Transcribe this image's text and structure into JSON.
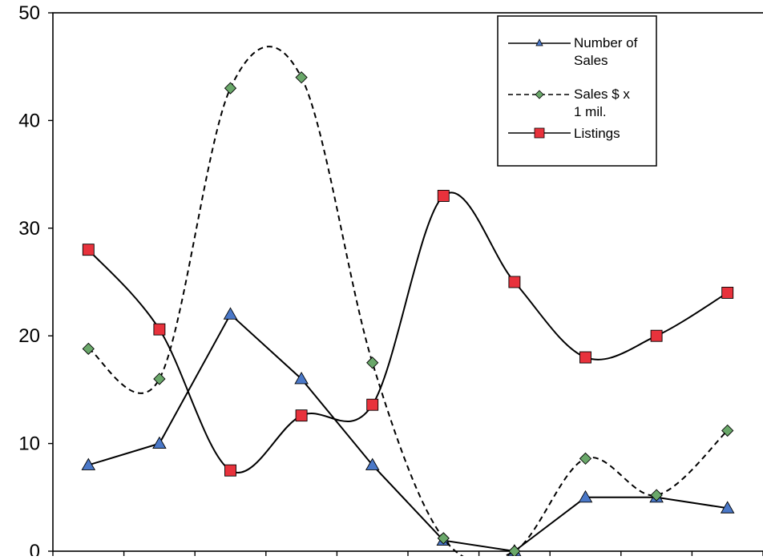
{
  "chart_data": {
    "type": "line",
    "title": "",
    "xlabel": "",
    "ylabel": "",
    "ylim": [
      0,
      50
    ],
    "yticks": [
      0,
      10,
      20,
      30,
      40,
      50
    ],
    "x": [
      1,
      2,
      3,
      4,
      5,
      6,
      7,
      8,
      9,
      10
    ],
    "grid": false,
    "legend_position": "top-right",
    "series": [
      {
        "name": "Number of Sales",
        "values": [
          8,
          10,
          22,
          16,
          8,
          1,
          0,
          5,
          5,
          4
        ],
        "line_style": "solid",
        "smooth": false,
        "marker": "triangle",
        "marker_color": "#4a78c8",
        "line_color": "#000000"
      },
      {
        "name": "Sales $ x 1 mil.",
        "values": [
          18.8,
          16,
          43,
          44,
          17.5,
          1.2,
          0,
          8.6,
          5.2,
          11.2
        ],
        "line_style": "dashed",
        "smooth": true,
        "marker": "diamond",
        "marker_color": "#6aa86a",
        "line_color": "#000000"
      },
      {
        "name": "Listings",
        "values": [
          28,
          20.6,
          7.5,
          12.6,
          13.6,
          33,
          25,
          18,
          20,
          24
        ],
        "line_style": "solid",
        "smooth": true,
        "marker": "square",
        "marker_color": "#e8323c",
        "line_color": "#000000"
      }
    ]
  },
  "legend": {
    "items": [
      {
        "line1": "Number of",
        "line2": "Sales"
      },
      {
        "line1": "Sales $ x",
        "line2": "1 mil."
      },
      {
        "line1": "Listings",
        "line2": ""
      }
    ]
  }
}
